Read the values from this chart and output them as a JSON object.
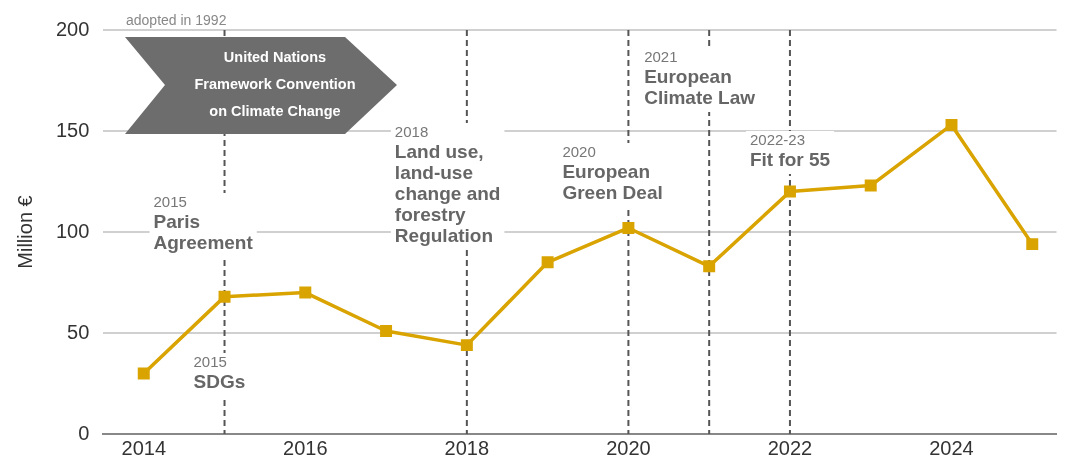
{
  "chart_data": {
    "type": "line",
    "ylabel": "Million €",
    "x": [
      2014,
      2015,
      2016,
      2017,
      2018,
      2019,
      2020,
      2021,
      2022,
      2023,
      2024,
      2025
    ],
    "series": [
      {
        "color": "#d9a300",
        "values": [
          30,
          68,
          70,
          51,
          44,
          85,
          102,
          83,
          120,
          123,
          153,
          94
        ]
      }
    ],
    "xlim": [
      2013.5,
      2025.3
    ],
    "xticks": [
      2014,
      2016,
      2018,
      2020,
      2022,
      2024
    ],
    "ylim": [
      0,
      200
    ],
    "yticks": [
      0,
      50,
      100,
      150,
      200
    ],
    "grid": "y",
    "legend": false,
    "marker": "square",
    "line_style": "solid",
    "ref_lines": [
      {
        "axis": "x",
        "value": 2015,
        "color": "#555555",
        "line_style": "dashed",
        "label": "2015\nParis\nAgreement"
      },
      {
        "axis": "x",
        "value": 2018,
        "color": "#555555",
        "line_style": "dashed",
        "label": "2018\nLand use,\nland-use\nchange and\nforestry\nRegulation"
      },
      {
        "axis": "x",
        "value": 2020,
        "color": "#555555",
        "line_style": "dashed",
        "label": "2020\nEuropean\nGreen Deal"
      },
      {
        "axis": "x",
        "value": 2021,
        "color": "#555555",
        "line_style": "dashed",
        "label": "2021\nEuropean\nClimate Law"
      },
      {
        "axis": "x",
        "value": 2022,
        "color": "#555555",
        "line_style": "dashed",
        "label": "2022-23\nFit for 55"
      }
    ],
    "annotations": [
      "adopted in 1992",
      "United Nations\nFramework Convention\non Climate Change",
      "2015\nSDGs"
    ]
  }
}
